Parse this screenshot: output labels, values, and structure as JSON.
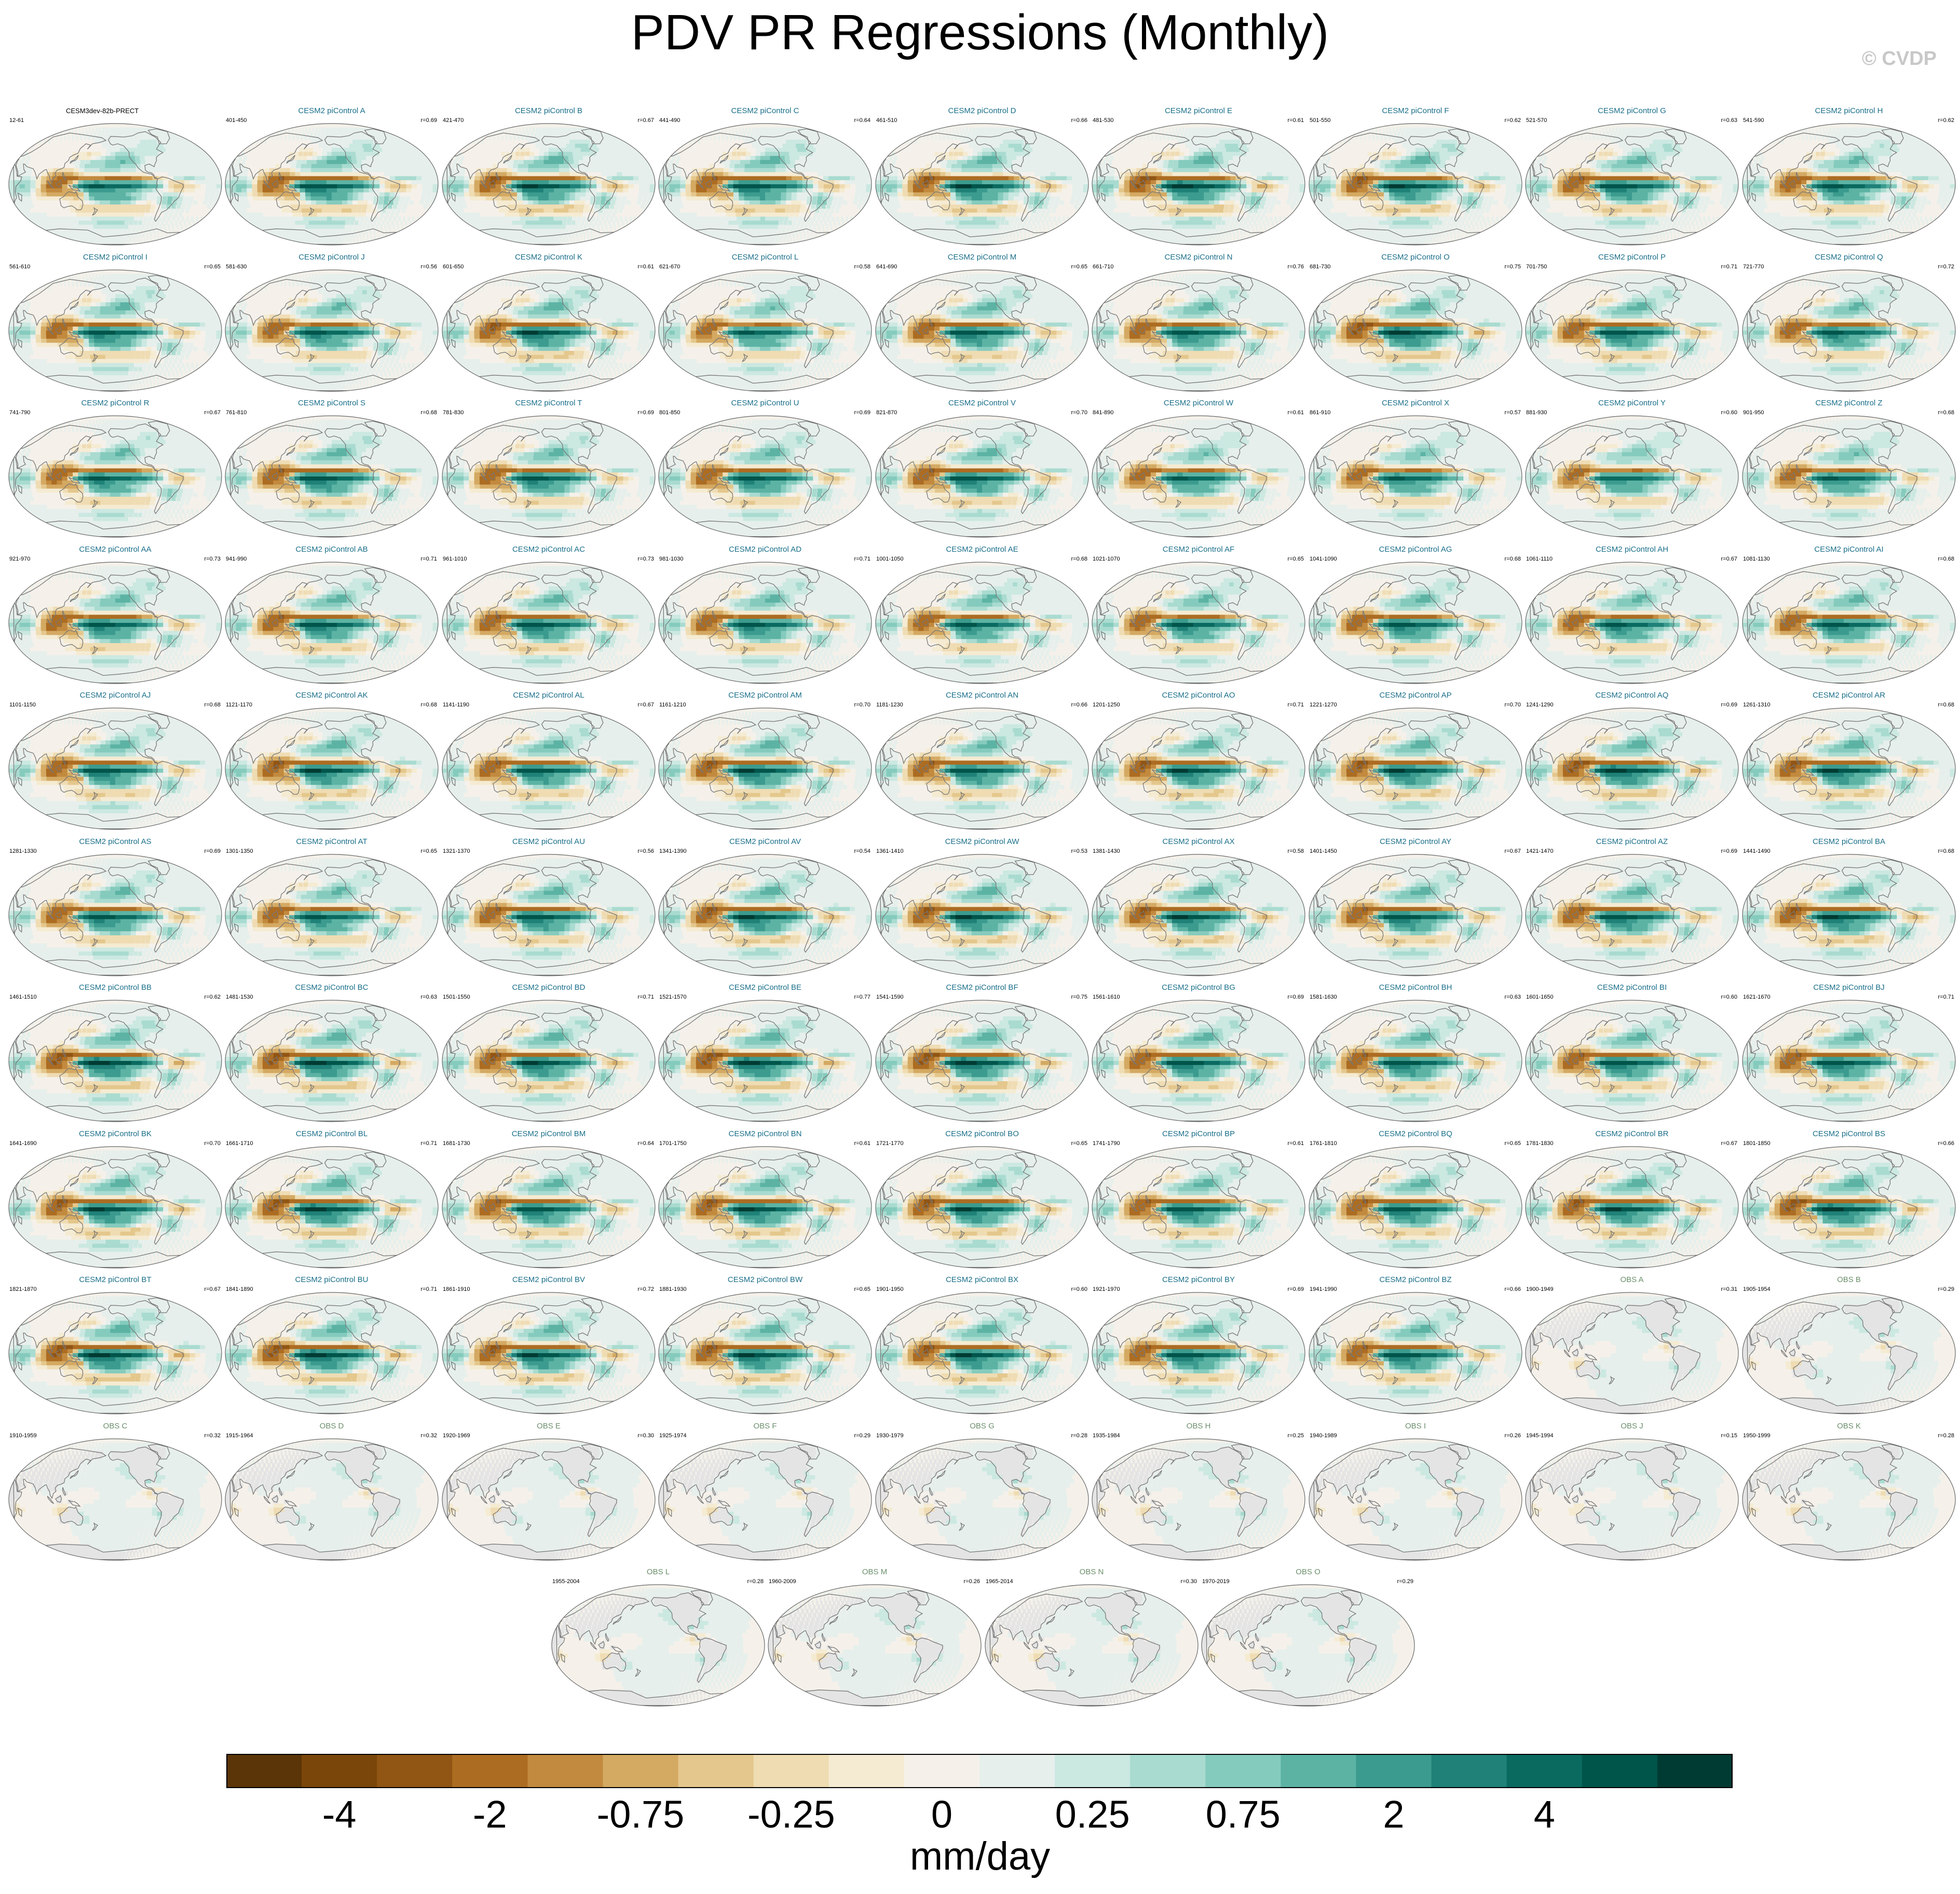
{
  "title": "PDV PR Regressions (Monthly)",
  "credit": "© CVDP",
  "colors": {
    "title_reference": "#000000",
    "title_model": "#1a6f8a",
    "title_obs": "#6b8f6b",
    "obs_land": "#e4e4e4",
    "ocean_base": "#f4f1ea",
    "coast": "#777777"
  },
  "chart_data": {
    "type": "heatmap",
    "description_units": "mm/day",
    "colorbar": {
      "unit_label": "mm/day",
      "tick_labels": [
        "-4",
        "-2",
        "-0.75",
        "-0.25",
        "0",
        "0.25",
        "0.75",
        "2",
        "4"
      ],
      "tick_bin_index": [
        1,
        3,
        5,
        7,
        9,
        11,
        13,
        15,
        17
      ],
      "colors": [
        "#5b3507",
        "#7a4609",
        "#915514",
        "#ac6c22",
        "#c28a3f",
        "#d4a962",
        "#e4c78c",
        "#efdcb3",
        "#f5ebd2",
        "#f5f1ea",
        "#e6efec",
        "#cbe8e1",
        "#a9dbd0",
        "#85cbbd",
        "#5cb3a4",
        "#3b9b8e",
        "#1f8178",
        "#0b6a60",
        "#00554b",
        "#003b33"
      ]
    },
    "panels": [
      {
        "title": "CESM3dev-82b-PRECT",
        "years": "12-61",
        "r": "",
        "kind": "ref",
        "amp": 0.85
      },
      {
        "title": "CESM2 piControl A",
        "years": "401-450",
        "r": "r=0.69",
        "kind": "model",
        "amp": 1.0
      },
      {
        "title": "CESM2 piControl B",
        "years": "421-470",
        "r": "r=0.67",
        "kind": "model",
        "amp": 1.05
      },
      {
        "title": "CESM2 piControl C",
        "years": "441-490",
        "r": "r=0.64",
        "kind": "model",
        "amp": 1.0
      },
      {
        "title": "CESM2 piControl D",
        "years": "461-510",
        "r": "r=0.66",
        "kind": "model",
        "amp": 1.05
      },
      {
        "title": "CESM2 piControl E",
        "years": "481-530",
        "r": "r=0.61",
        "kind": "model",
        "amp": 1.1
      },
      {
        "title": "CESM2 piControl F",
        "years": "501-550",
        "r": "r=0.62",
        "kind": "model",
        "amp": 1.05
      },
      {
        "title": "CESM2 piControl G",
        "years": "521-570",
        "r": "r=0.63",
        "kind": "model",
        "amp": 1.0
      },
      {
        "title": "CESM2 piControl H",
        "years": "541-590",
        "r": "r=0.62",
        "kind": "model",
        "amp": 0.9
      },
      {
        "title": "CESM2 piControl I",
        "years": "561-610",
        "r": "r=0.65",
        "kind": "model",
        "amp": 0.95
      },
      {
        "title": "CESM2 piControl J",
        "years": "581-630",
        "r": "r=0.56",
        "kind": "model",
        "amp": 0.9
      },
      {
        "title": "CESM2 piControl K",
        "years": "601-650",
        "r": "r=0.61",
        "kind": "model",
        "amp": 1.05
      },
      {
        "title": "CESM2 piControl L",
        "years": "621-670",
        "r": "r=0.58",
        "kind": "model",
        "amp": 0.85
      },
      {
        "title": "CESM2 piControl M",
        "years": "641-690",
        "r": "r=0.65",
        "kind": "model",
        "amp": 1.0
      },
      {
        "title": "CESM2 piControl N",
        "years": "661-710",
        "r": "r=0.76",
        "kind": "model",
        "amp": 0.95
      },
      {
        "title": "CESM2 piControl O",
        "years": "681-730",
        "r": "r=0.75",
        "kind": "model",
        "amp": 1.1
      },
      {
        "title": "CESM2 piControl P",
        "years": "701-750",
        "r": "r=0.71",
        "kind": "model",
        "amp": 1.0
      },
      {
        "title": "CESM2 piControl Q",
        "years": "721-770",
        "r": "r=0.72",
        "kind": "model",
        "amp": 0.9
      },
      {
        "title": "CESM2 piControl R",
        "years": "741-790",
        "r": "r=0.67",
        "kind": "model",
        "amp": 0.9
      },
      {
        "title": "CESM2 piControl S",
        "years": "761-810",
        "r": "r=0.68",
        "kind": "model",
        "amp": 1.0
      },
      {
        "title": "CESM2 piControl T",
        "years": "781-830",
        "r": "r=0.69",
        "kind": "model",
        "amp": 0.95
      },
      {
        "title": "CESM2 piControl U",
        "years": "801-850",
        "r": "r=0.69",
        "kind": "model",
        "amp": 0.95
      },
      {
        "title": "CESM2 piControl V",
        "years": "821-870",
        "r": "r=0.70",
        "kind": "model",
        "amp": 1.0
      },
      {
        "title": "CESM2 piControl W",
        "years": "841-890",
        "r": "r=0.61",
        "kind": "model",
        "amp": 0.85
      },
      {
        "title": "CESM2 piControl X",
        "years": "861-910",
        "r": "r=0.57",
        "kind": "model",
        "amp": 0.85
      },
      {
        "title": "CESM2 piControl Y",
        "years": "881-930",
        "r": "r=0.60",
        "kind": "model",
        "amp": 0.8
      },
      {
        "title": "CESM2 piControl Z",
        "years": "901-950",
        "r": "r=0.68",
        "kind": "model",
        "amp": 0.85
      },
      {
        "title": "CESM2 piControl AA",
        "years": "921-970",
        "r": "r=0.73",
        "kind": "model",
        "amp": 0.95
      },
      {
        "title": "CESM2 piControl AB",
        "years": "941-990",
        "r": "r=0.71",
        "kind": "model",
        "amp": 1.0
      },
      {
        "title": "CESM2 piControl AC",
        "years": "961-1010",
        "r": "r=0.73",
        "kind": "model",
        "amp": 1.0
      },
      {
        "title": "CESM2 piControl AD",
        "years": "981-1030",
        "r": "r=0.71",
        "kind": "model",
        "amp": 0.95
      },
      {
        "title": "CESM2 piControl AE",
        "years": "1001-1050",
        "r": "r=0.68",
        "kind": "model",
        "amp": 0.9
      },
      {
        "title": "CESM2 piControl AF",
        "years": "1021-1070",
        "r": "r=0.65",
        "kind": "model",
        "amp": 0.9
      },
      {
        "title": "CESM2 piControl AG",
        "years": "1041-1090",
        "r": "r=0.68",
        "kind": "model",
        "amp": 0.95
      },
      {
        "title": "CESM2 piControl AH",
        "years": "1061-1110",
        "r": "r=0.67",
        "kind": "model",
        "amp": 0.9
      },
      {
        "title": "CESM2 piControl AI",
        "years": "1081-1130",
        "r": "r=0.68",
        "kind": "model",
        "amp": 0.95
      },
      {
        "title": "CESM2 piControl AJ",
        "years": "1101-1150",
        "r": "r=0.68",
        "kind": "model",
        "amp": 1.0
      },
      {
        "title": "CESM2 piControl AK",
        "years": "1121-1170",
        "r": "r=0.68",
        "kind": "model",
        "amp": 1.05
      },
      {
        "title": "CESM2 piControl AL",
        "years": "1141-1190",
        "r": "r=0.67",
        "kind": "model",
        "amp": 1.0
      },
      {
        "title": "CESM2 piControl AM",
        "years": "1161-1210",
        "r": "r=0.70",
        "kind": "model",
        "amp": 1.05
      },
      {
        "title": "CESM2 piControl AN",
        "years": "1181-1230",
        "r": "r=0.66",
        "kind": "model",
        "amp": 1.0
      },
      {
        "title": "CESM2 piControl AO",
        "years": "1201-1250",
        "r": "r=0.71",
        "kind": "model",
        "amp": 1.05
      },
      {
        "title": "CESM2 piControl AP",
        "years": "1221-1270",
        "r": "r=0.70",
        "kind": "model",
        "amp": 1.05
      },
      {
        "title": "CESM2 piControl AQ",
        "years": "1241-1290",
        "r": "r=0.69",
        "kind": "model",
        "amp": 1.1
      },
      {
        "title": "CESM2 piControl AR",
        "years": "1261-1310",
        "r": "r=0.68",
        "kind": "model",
        "amp": 1.05
      },
      {
        "title": "CESM2 piControl AS",
        "years": "1281-1330",
        "r": "r=0.69",
        "kind": "model",
        "amp": 0.95
      },
      {
        "title": "CESM2 piControl AT",
        "years": "1301-1350",
        "r": "r=0.65",
        "kind": "model",
        "amp": 0.9
      },
      {
        "title": "CESM2 piControl AU",
        "years": "1321-1370",
        "r": "r=0.56",
        "kind": "model",
        "amp": 1.0
      },
      {
        "title": "CESM2 piControl AV",
        "years": "1341-1390",
        "r": "r=0.54",
        "kind": "model",
        "amp": 1.05
      },
      {
        "title": "CESM2 piControl AW",
        "years": "1361-1410",
        "r": "r=0.53",
        "kind": "model",
        "amp": 1.05
      },
      {
        "title": "CESM2 piControl AX",
        "years": "1381-1430",
        "r": "r=0.58",
        "kind": "model",
        "amp": 1.05
      },
      {
        "title": "CESM2 piControl AY",
        "years": "1401-1450",
        "r": "r=0.67",
        "kind": "model",
        "amp": 1.0
      },
      {
        "title": "CESM2 piControl AZ",
        "years": "1421-1470",
        "r": "r=0.69",
        "kind": "model",
        "amp": 1.0
      },
      {
        "title": "CESM2 piControl BA",
        "years": "1441-1490",
        "r": "r=0.68",
        "kind": "model",
        "amp": 1.05
      },
      {
        "title": "CESM2 piControl BB",
        "years": "1461-1510",
        "r": "r=0.62",
        "kind": "model",
        "amp": 1.1
      },
      {
        "title": "CESM2 piControl BC",
        "years": "1481-1530",
        "r": "r=0.63",
        "kind": "model",
        "amp": 1.1
      },
      {
        "title": "CESM2 piControl BD",
        "years": "1501-1550",
        "r": "r=0.71",
        "kind": "model",
        "amp": 1.05
      },
      {
        "title": "CESM2 piControl BE",
        "years": "1521-1570",
        "r": "r=0.77",
        "kind": "model",
        "amp": 1.1
      },
      {
        "title": "CESM2 piControl BF",
        "years": "1541-1590",
        "r": "r=0.75",
        "kind": "model",
        "amp": 1.1
      },
      {
        "title": "CESM2 piControl BG",
        "years": "1561-1610",
        "r": "r=0.69",
        "kind": "model",
        "amp": 1.0
      },
      {
        "title": "CESM2 piControl BH",
        "years": "1581-1630",
        "r": "r=0.63",
        "kind": "model",
        "amp": 1.0
      },
      {
        "title": "CESM2 piControl BI",
        "years": "1601-1650",
        "r": "r=0.60",
        "kind": "model",
        "amp": 1.0
      },
      {
        "title": "CESM2 piControl BJ",
        "years": "1621-1670",
        "r": "r=0.71",
        "kind": "model",
        "amp": 1.0
      },
      {
        "title": "CESM2 piControl BK",
        "years": "1641-1690",
        "r": "r=0.70",
        "kind": "model",
        "amp": 1.05
      },
      {
        "title": "CESM2 piControl BL",
        "years": "1661-1710",
        "r": "r=0.71",
        "kind": "model",
        "amp": 1.1
      },
      {
        "title": "CESM2 piControl BM",
        "years": "1681-1730",
        "r": "r=0.64",
        "kind": "model",
        "amp": 1.0
      },
      {
        "title": "CESM2 piControl BN",
        "years": "1701-1750",
        "r": "r=0.61",
        "kind": "model",
        "amp": 1.05
      },
      {
        "title": "CESM2 piControl BO",
        "years": "1721-1770",
        "r": "r=0.65",
        "kind": "model",
        "amp": 1.05
      },
      {
        "title": "CESM2 piControl BP",
        "years": "1741-1790",
        "r": "r=0.61",
        "kind": "model",
        "amp": 1.0
      },
      {
        "title": "CESM2 piControl BQ",
        "years": "1761-1810",
        "r": "r=0.65",
        "kind": "model",
        "amp": 1.0
      },
      {
        "title": "CESM2 piControl BR",
        "years": "1781-1830",
        "r": "r=0.67",
        "kind": "model",
        "amp": 1.05
      },
      {
        "title": "CESM2 piControl BS",
        "years": "1801-1850",
        "r": "r=0.66",
        "kind": "model",
        "amp": 1.1
      },
      {
        "title": "CESM2 piControl BT",
        "years": "1821-1870",
        "r": "r=0.67",
        "kind": "model",
        "amp": 1.1
      },
      {
        "title": "CESM2 piControl BU",
        "years": "1841-1890",
        "r": "r=0.71",
        "kind": "model",
        "amp": 1.1
      },
      {
        "title": "CESM2 piControl BV",
        "years": "1861-1910",
        "r": "r=0.72",
        "kind": "model",
        "amp": 1.05
      },
      {
        "title": "CESM2 piControl BW",
        "years": "1881-1930",
        "r": "r=0.65",
        "kind": "model",
        "amp": 1.05
      },
      {
        "title": "CESM2 piControl BX",
        "years": "1901-1950",
        "r": "r=0.60",
        "kind": "model",
        "amp": 1.05
      },
      {
        "title": "CESM2 piControl BY",
        "years": "1921-1970",
        "r": "r=0.69",
        "kind": "model",
        "amp": 1.0
      },
      {
        "title": "CESM2 piControl BZ",
        "years": "1941-1990",
        "r": "r=0.66",
        "kind": "model",
        "amp": 1.0
      },
      {
        "title": "OBS A",
        "years": "1900-1949",
        "r": "r=0.31",
        "kind": "obs",
        "amp": 0.6
      },
      {
        "title": "OBS B",
        "years": "1905-1954",
        "r": "r=0.29",
        "kind": "obs",
        "amp": 0.6
      },
      {
        "title": "OBS C",
        "years": "1910-1959",
        "r": "r=0.32",
        "kind": "obs",
        "amp": 0.6
      },
      {
        "title": "OBS D",
        "years": "1915-1964",
        "r": "r=0.32",
        "kind": "obs",
        "amp": 0.6
      },
      {
        "title": "OBS E",
        "years": "1920-1969",
        "r": "r=0.30",
        "kind": "obs",
        "amp": 0.6
      },
      {
        "title": "OBS F",
        "years": "1925-1974",
        "r": "r=0.29",
        "kind": "obs",
        "amp": 0.6
      },
      {
        "title": "OBS G",
        "years": "1930-1979",
        "r": "r=0.28",
        "kind": "obs",
        "amp": 0.6
      },
      {
        "title": "OBS H",
        "years": "1935-1984",
        "r": "r=0.25",
        "kind": "obs",
        "amp": 0.6
      },
      {
        "title": "OBS I",
        "years": "1940-1989",
        "r": "r=0.26",
        "kind": "obs",
        "amp": 0.6
      },
      {
        "title": "OBS J",
        "years": "1945-1994",
        "r": "r=0.15",
        "kind": "obs",
        "amp": 0.5
      },
      {
        "title": "OBS K",
        "years": "1950-1999",
        "r": "r=0.28",
        "kind": "obs",
        "amp": 0.6
      },
      {
        "title": "OBS L",
        "years": "1955-2004",
        "r": "r=0.28",
        "kind": "obs",
        "amp": 0.6
      },
      {
        "title": "OBS M",
        "years": "1960-2009",
        "r": "r=0.26",
        "kind": "obs",
        "amp": 0.6
      },
      {
        "title": "OBS N",
        "years": "1965-2014",
        "r": "r=0.30",
        "kind": "obs",
        "amp": 0.6
      },
      {
        "title": "OBS O",
        "years": "1970-2019",
        "r": "r=0.29",
        "kind": "obs",
        "amp": 0.6
      }
    ]
  }
}
